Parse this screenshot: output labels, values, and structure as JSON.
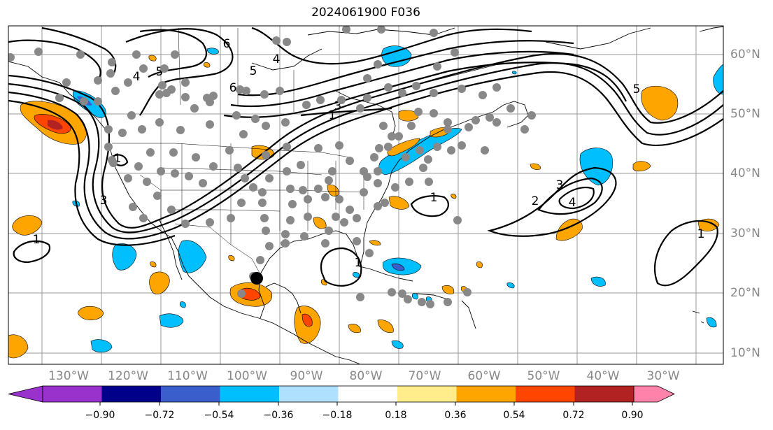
{
  "title": "2024061900 F036",
  "map": {
    "lat_labels": [
      "60°N",
      "50°N",
      "40°N",
      "30°N",
      "20°N",
      "10°N"
    ],
    "lon_labels": [
      "130°W",
      "120°W",
      "110°W",
      "100°W",
      "90°W",
      "80°W",
      "70°W",
      "60°W",
      "50°W",
      "40°W",
      "30°W"
    ],
    "contour_labels": [
      "1",
      "1",
      "1",
      "1",
      "1",
      "1",
      "2",
      "3",
      "3",
      "3",
      "4",
      "4",
      "4",
      "5",
      "5",
      "5",
      "6",
      "6"
    ],
    "highlighted_station": "black-dot"
  },
  "colorbar": {
    "colors": [
      "#9932cc",
      "#00008b",
      "#3a5fcd",
      "#00bfff",
      "#afe1ff",
      "#ffffff",
      "#ffec8b",
      "#ffa500",
      "#ff4500",
      "#b22222",
      "#ff82ab"
    ],
    "tick_labels": [
      "−0.90",
      "−0.72",
      "−0.54",
      "−0.36",
      "−0.18",
      "0.18",
      "0.36",
      "0.54",
      "0.72",
      "0.90"
    ]
  }
}
